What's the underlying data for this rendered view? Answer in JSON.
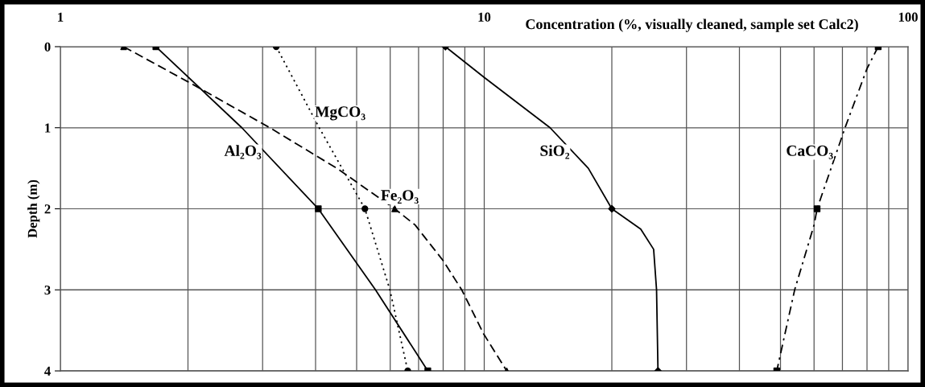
{
  "chart_data": {
    "type": "line",
    "xlabel": "Concentration (%, visually cleaned, sample set Calc2)",
    "ylabel": "Depth (m)",
    "log": "x",
    "series": [
      {
        "name": "Al₂O₃",
        "color": "#000000",
        "x": [
          1.68,
          2.68,
          4.06,
          5.54,
          7.36
        ],
        "values": [
          0,
          1,
          2,
          3,
          4
        ],
        "marker": "none",
        "line_style": "solid"
      },
      {
        "type": "scatter",
        "color": "#000000",
        "x": [
          1.68,
          4.06,
          7.36
        ],
        "values": [
          0,
          2,
          4
        ],
        "marker": "square"
      },
      {
        "name": "MgCO₃",
        "color": "#000000",
        "x": [
          3.23,
          4.08,
          5.23,
          5.99,
          6.6
        ],
        "values": [
          0,
          1,
          2,
          3,
          4
        ],
        "marker": "none",
        "line_style": "dotted"
      },
      {
        "type": "scatter",
        "color": "#000000",
        "x": [
          3.23,
          5.23,
          6.6
        ],
        "values": [
          0,
          2,
          4
        ],
        "marker": "circle"
      },
      {
        "name": "Fe₂O₃",
        "color": "#000000",
        "x": [
          1.41,
          2.11,
          3.12,
          4.49,
          6.15,
          6.87,
          8.0,
          8.85,
          9.96,
          11.3
        ],
        "values": [
          0,
          0.5,
          1,
          1.5,
          2,
          2.2,
          2.64,
          3,
          3.54,
          4
        ],
        "marker": "none",
        "line_style": "dashed"
      },
      {
        "type": "scatter",
        "color": "#000000",
        "x": [
          1.41,
          6.15,
          11.3
        ],
        "values": [
          0,
          2,
          4
        ],
        "marker": "triangle"
      },
      {
        "name": "SiO₂",
        "color": "#000000",
        "x": [
          8.1,
          10,
          14.3,
          17.6,
          20,
          23.4,
          25.1,
          25.5,
          25.7
        ],
        "values": [
          0,
          0.38,
          1,
          1.5,
          2,
          2.25,
          2.5,
          3,
          4
        ],
        "marker": "none",
        "line_style": "solid"
      },
      {
        "type": "scatter",
        "color": "#000000",
        "x": [
          8.1,
          20,
          25.7
        ],
        "values": [
          0,
          2,
          4
        ],
        "marker": "diamond"
      },
      {
        "name": "CaCO₃",
        "color": "#000000",
        "x": [
          85,
          80,
          71,
          61,
          60,
          54,
          49
        ],
        "values": [
          0,
          0.27,
          1,
          2,
          2.2,
          3,
          4
        ],
        "marker": "none",
        "line_style": "dashdot"
      },
      {
        "type": "scatter",
        "color": "#000000",
        "x": [
          85,
          61,
          49
        ],
        "values": [
          0,
          2,
          4
        ],
        "marker": "square"
      }
    ],
    "xlim": [
      1,
      100
    ],
    "xticks": [
      1,
      {
        "value": 2,
        "label": null
      },
      {
        "value": 3,
        "label": null
      },
      {
        "value": 4,
        "label": null
      },
      {
        "value": 5,
        "label": null
      },
      {
        "value": 6,
        "label": null
      },
      {
        "value": 7,
        "label": null
      },
      {
        "value": 8,
        "label": null
      },
      {
        "value": 9,
        "label": null
      },
      10,
      {
        "value": 20,
        "label": null
      },
      {
        "value": 30,
        "label": null
      },
      {
        "value": 40,
        "label": null
      },
      {
        "value": 50,
        "label": null
      },
      {
        "value": 60,
        "label": null
      },
      {
        "value": 70,
        "label": null
      },
      {
        "value": 80,
        "label": null
      },
      {
        "value": 90,
        "label": null
      },
      100
    ],
    "ylim": [
      4,
      0
    ],
    "yticks": [
      0,
      1,
      2,
      3,
      4
    ],
    "grid": true,
    "legend": false
  }
}
